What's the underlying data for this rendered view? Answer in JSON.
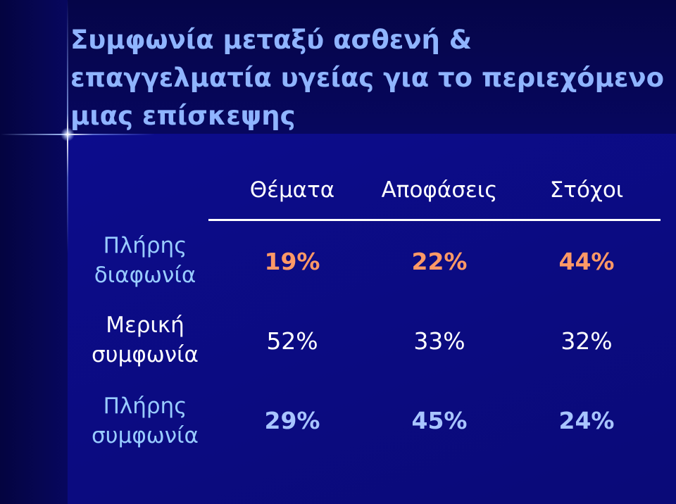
{
  "title": {
    "line1": "Συμφωνία μεταξύ ασθενή &",
    "line2": "επαγγελματία υγείας για το περιεχόμενο",
    "line3": "μιας επίσκεψης"
  },
  "columns": [
    "Θέματα",
    "Αποφάσεις",
    "Στόχοι"
  ],
  "rows": [
    {
      "label_line1": "Πλήρης",
      "label_line2": "διαφωνία",
      "values": [
        "19%",
        "22%",
        "44%"
      ],
      "color": "#ff9966"
    },
    {
      "label_line1": "Μερική",
      "label_line2": "συμφωνία",
      "values": [
        "52%",
        "33%",
        "32%"
      ],
      "color": "#ffffff"
    },
    {
      "label_line1": "Πλήρης",
      "label_line2": "συμφωνία",
      "values": [
        "29%",
        "45%",
        "24%"
      ],
      "color": "#a8c4ff"
    }
  ],
  "colors": {
    "background": "#0a0a80",
    "title": "#8fb4ff",
    "label": "#99ccff"
  }
}
